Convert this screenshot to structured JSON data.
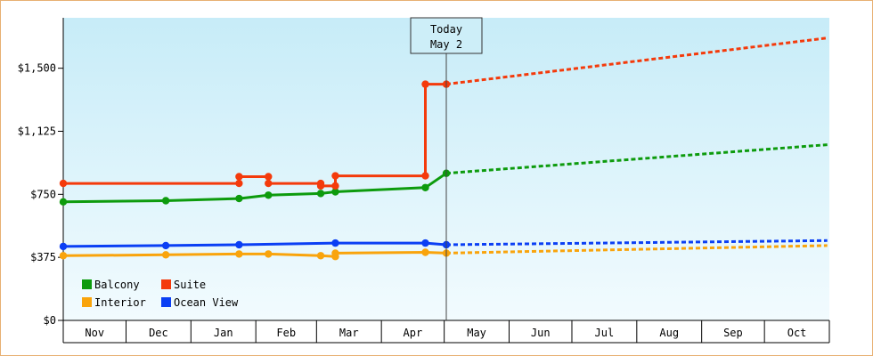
{
  "chart_data": {
    "type": "line",
    "title": "",
    "xlabel": "",
    "ylabel": "",
    "ylim": [
      0,
      1800
    ],
    "yticks": [
      {
        "value": 0,
        "label": "$0"
      },
      {
        "value": 375,
        "label": "$375"
      },
      {
        "value": 750,
        "label": "$750"
      },
      {
        "value": 1125,
        "label": "$1,125"
      },
      {
        "value": 1500,
        "label": "$1,500"
      }
    ],
    "xlim": [
      "2023-11-01",
      "2024-10-31"
    ],
    "months": [
      "Nov",
      "Dec",
      "Jan",
      "Feb",
      "Mar",
      "Apr",
      "May",
      "Jun",
      "Jul",
      "Aug",
      "Sep",
      "Oct"
    ],
    "today": {
      "date": "2024-05-02",
      "label_line1": "Today",
      "label_line2": "May 2"
    },
    "legend_position": "bottom-left",
    "background": "gradient light blue",
    "series": [
      {
        "name": "Balcony",
        "color": "#0d9b0d",
        "history": [
          [
            "2023-11-01",
            705
          ],
          [
            "2023-12-20",
            712
          ],
          [
            "2024-01-24",
            725
          ],
          [
            "2024-02-07",
            745
          ],
          [
            "2024-03-03",
            755
          ],
          [
            "2024-03-10",
            765
          ],
          [
            "2024-04-22",
            790
          ],
          [
            "2024-05-02",
            875
          ]
        ],
        "forecast": [
          [
            "2024-05-02",
            875
          ],
          [
            "2024-10-31",
            1045
          ]
        ]
      },
      {
        "name": "Suite",
        "color": "#f43a0b",
        "history": [
          [
            "2023-11-01",
            815
          ],
          [
            "2024-01-24",
            815
          ],
          [
            "2024-01-24",
            855
          ],
          [
            "2024-02-07",
            855
          ],
          [
            "2024-02-07",
            815
          ],
          [
            "2024-03-03",
            815
          ],
          [
            "2024-03-03",
            800
          ],
          [
            "2024-03-10",
            800
          ],
          [
            "2024-03-10",
            860
          ],
          [
            "2024-04-22",
            860
          ],
          [
            "2024-04-22",
            1405
          ],
          [
            "2024-05-02",
            1405
          ]
        ],
        "forecast": [
          [
            "2024-05-02",
            1405
          ],
          [
            "2024-10-31",
            1680
          ]
        ]
      },
      {
        "name": "Interior",
        "color": "#f9a40c",
        "history": [
          [
            "2023-11-01",
            385
          ],
          [
            "2023-12-20",
            390
          ],
          [
            "2024-01-24",
            395
          ],
          [
            "2024-02-07",
            395
          ],
          [
            "2024-03-03",
            385
          ],
          [
            "2024-03-10",
            380
          ],
          [
            "2024-03-10",
            400
          ],
          [
            "2024-04-22",
            405
          ],
          [
            "2024-05-02",
            400
          ]
        ],
        "forecast": [
          [
            "2024-05-02",
            400
          ],
          [
            "2024-10-31",
            445
          ]
        ]
      },
      {
        "name": "Ocean View",
        "color": "#0b3ff4",
        "history": [
          [
            "2023-11-01",
            440
          ],
          [
            "2023-12-20",
            445
          ],
          [
            "2024-01-24",
            450
          ],
          [
            "2024-03-10",
            460
          ],
          [
            "2024-04-22",
            460
          ],
          [
            "2024-05-02",
            450
          ]
        ],
        "forecast": [
          [
            "2024-05-02",
            450
          ],
          [
            "2024-10-31",
            475
          ]
        ]
      }
    ],
    "legend_order": [
      "Balcony",
      "Suite",
      "Interior",
      "Ocean View"
    ]
  }
}
